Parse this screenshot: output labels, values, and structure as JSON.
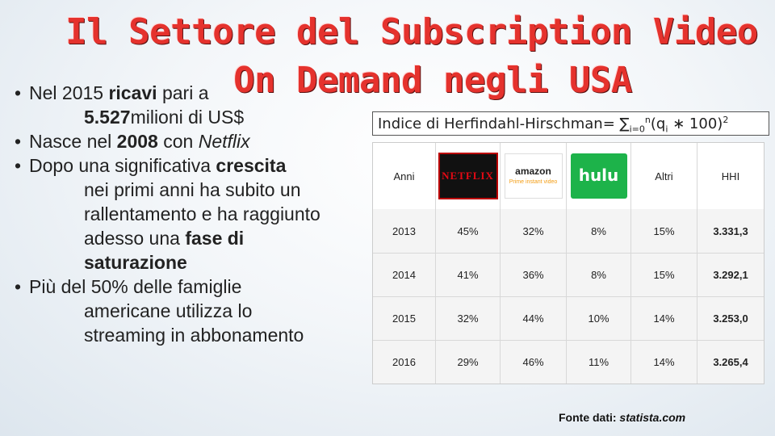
{
  "title": {
    "line1": "Il Settore del Subscription Video",
    "line2": "On Demand negli USA"
  },
  "bullets": {
    "b1_pre": "Nel 2015 ",
    "b1_bold": "ricavi",
    "b1_mid": " pari a",
    "b1_line2_bold": "5.527",
    "b1_line2_rest": "milioni di US$",
    "b2_pre": "Nasce nel ",
    "b2_bold": "2008",
    "b2_mid": " con ",
    "b2_italic": "Netflix",
    "b3_pre": "Dopo una significativa ",
    "b3_bold": "crescita",
    "b3_l2": "nei primi anni ha subito un",
    "b3_l3": "rallentamento e ha raggiunto",
    "b3_l4_pre": "adesso una ",
    "b3_l4_bold": "fase di",
    "b3_l5_bold": "saturazione",
    "b4_l1": "Più del 50% delle famiglie",
    "b4_l2": "americane utilizza lo",
    "b4_l3": "streaming in abbonamento"
  },
  "formula": {
    "text": "Indice di Herfindahl-Hirschman= ∑",
    "sub": "i=0",
    "sup": "n",
    "tail": "(q",
    "tail_sub": "i",
    "tail2": " ∗ 100)",
    "tail_sup": "2"
  },
  "table": {
    "headers": {
      "anni": "Anni",
      "netflix": "NETFLIX",
      "amazon": "amazon",
      "amazon_sub": "Prime instant video",
      "hulu": "hulu",
      "altri": "Altri",
      "hhi": "HHI"
    },
    "rows": [
      {
        "anno": "2013",
        "netflix": "45%",
        "amazon": "32%",
        "hulu": "8%",
        "altri": "15%",
        "hhi": "3.331,3"
      },
      {
        "anno": "2014",
        "netflix": "41%",
        "amazon": "36%",
        "hulu": "8%",
        "altri": "15%",
        "hhi": "3.292,1"
      },
      {
        "anno": "2015",
        "netflix": "32%",
        "amazon": "44%",
        "hulu": "10%",
        "altri": "14%",
        "hhi": "3.253,0"
      },
      {
        "anno": "2016",
        "netflix": "29%",
        "amazon": "46%",
        "hulu": "11%",
        "altri": "14%",
        "hhi": "3.265,4"
      }
    ]
  },
  "source": {
    "label": "Fonte dati:",
    "value": " statista.com"
  },
  "colors": {
    "title": "#e5322d",
    "netflix": "#e50914",
    "hulu": "#1db34a"
  }
}
